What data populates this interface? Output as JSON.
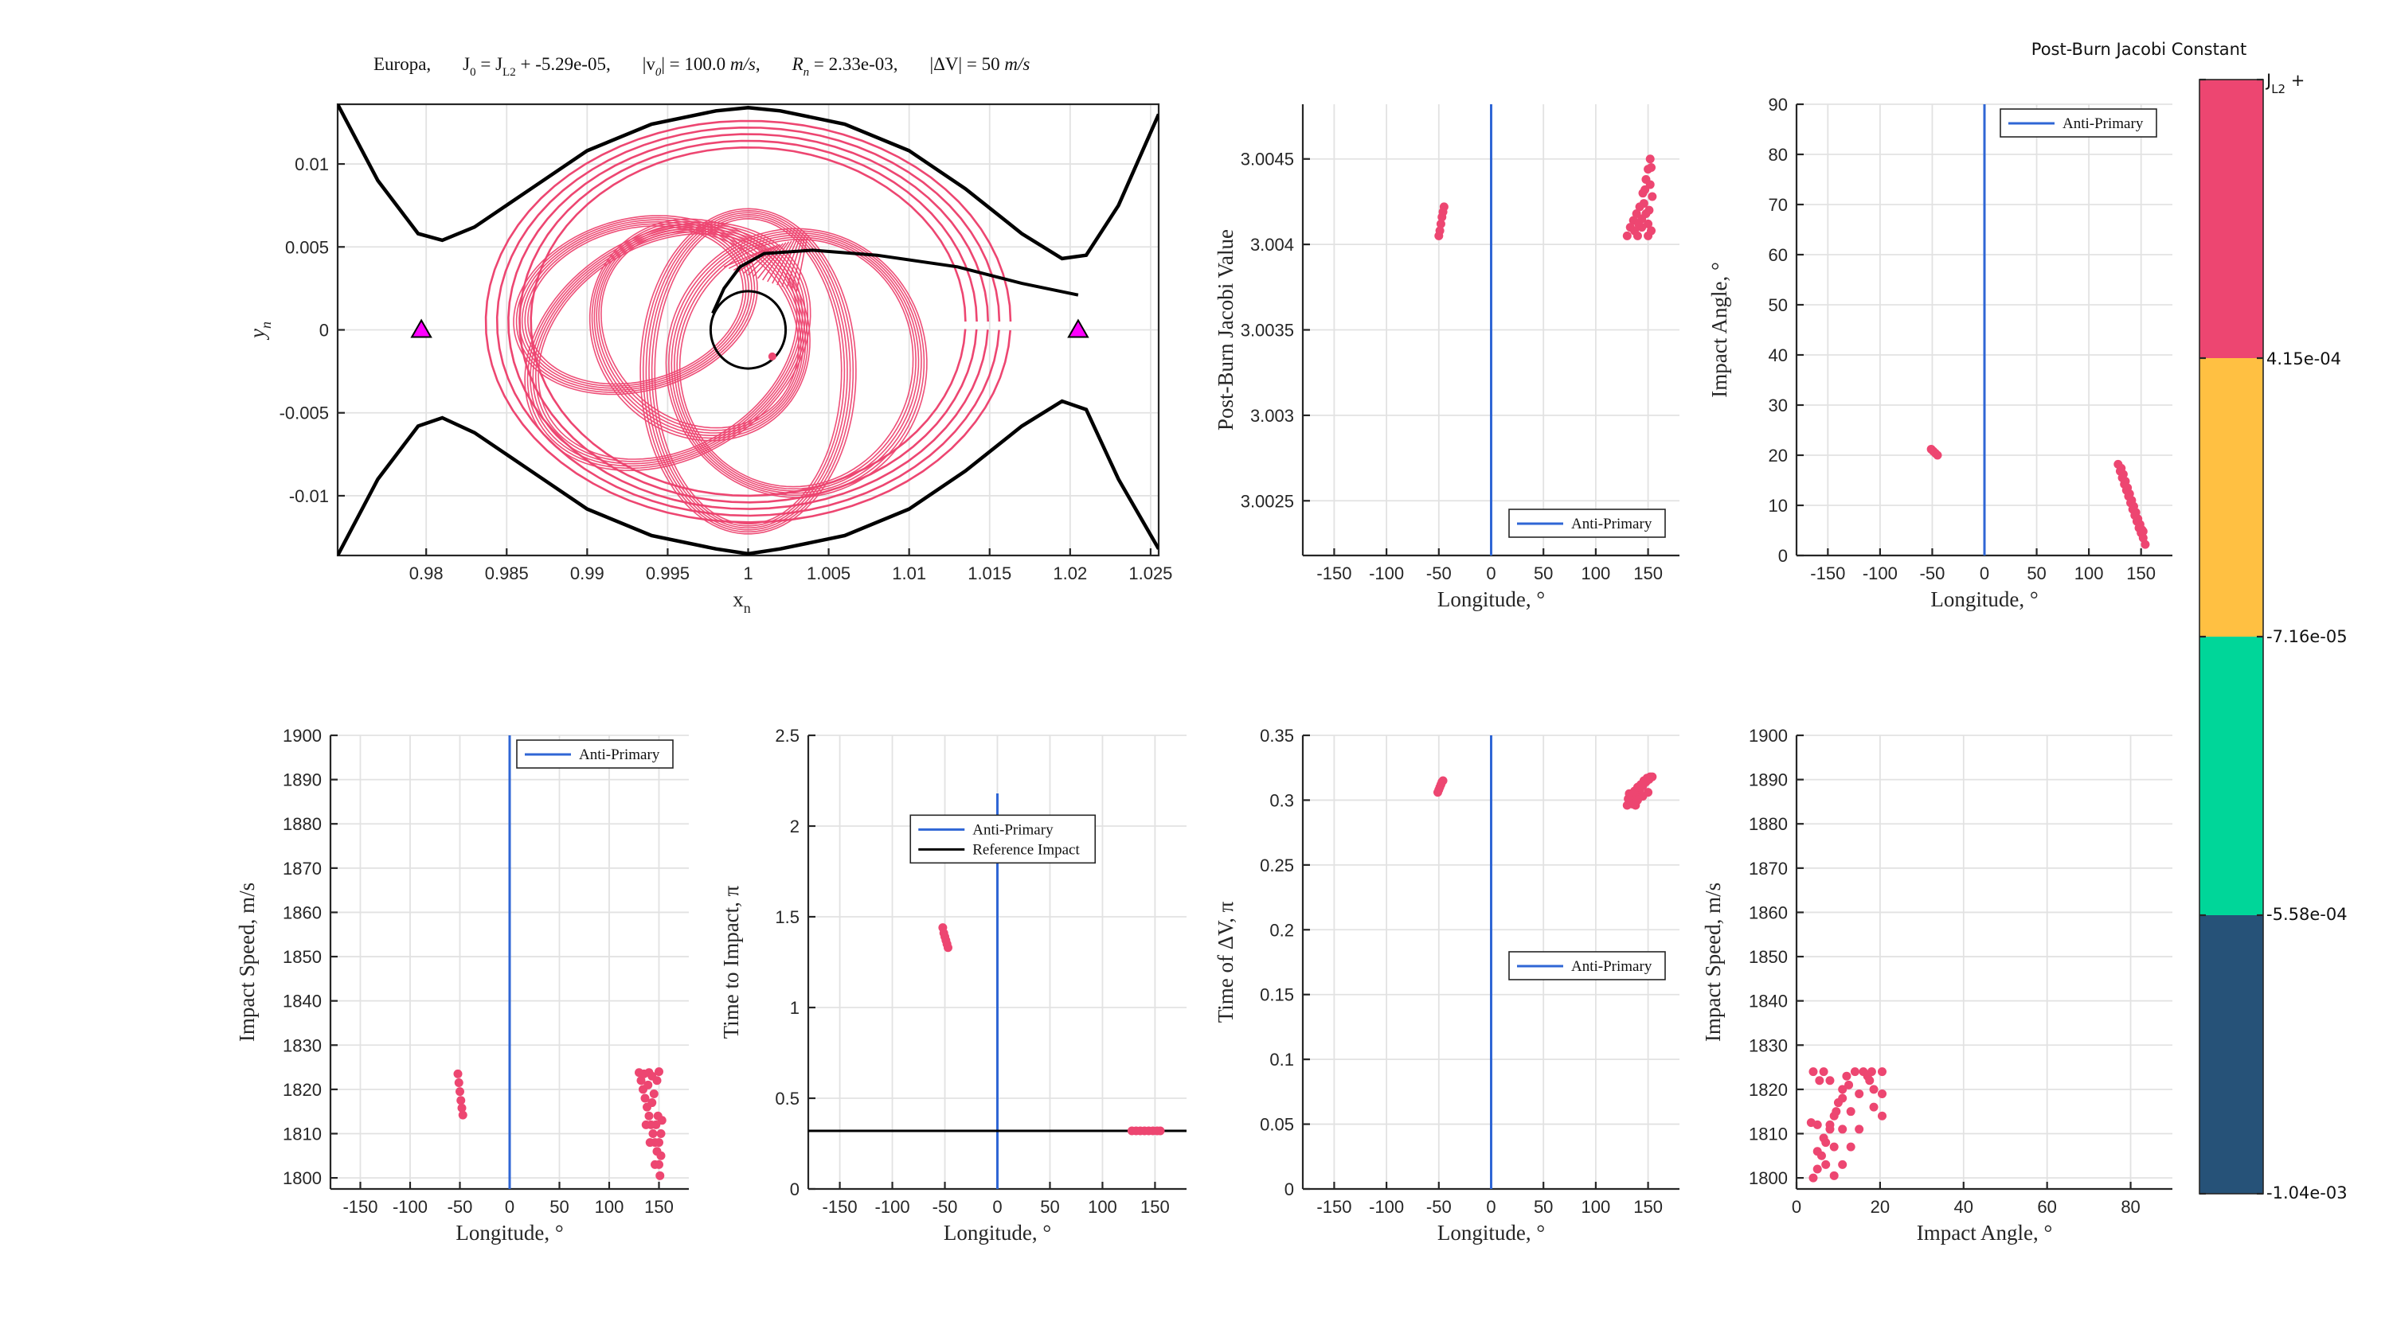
{
  "colors": {
    "pink": "#ED4671",
    "blue": "#2F66D5",
    "black": "#000000",
    "magenta": "#FF00FF",
    "cb": [
      "#265278",
      "#00D699",
      "#FFC042",
      "#ED4671"
    ]
  },
  "colorbar": {
    "title": "Post-Burn Jacobi Constant",
    "top_label": "J",
    "top_label_sub": "L2",
    "top_label_suffix": " +",
    "tick_labels": [
      "4.15e-04",
      "-7.16e-05",
      "-5.58e-04",
      "-1.04e-03"
    ]
  },
  "chart_data": [
    {
      "id": "orbit",
      "type": "line",
      "title": "Europa,     J0 = JL2 + -5.29e-05,     |v0| = 100.0 m/s,     Rn = 2.33e-03,     |ΔV| = 50 m/s",
      "title_parts": [
        "Europa,",
        "J",
        "0",
        " = J",
        "L2",
        " + -5.29e-05,",
        "|v",
        "0",
        "| = 100.0 ",
        "m/s",
        ",",
        "R",
        "n",
        " = 2.33e-03,",
        "|ΔV| = 50 ",
        "m/s"
      ],
      "xlabel": "x",
      "xlabel_sub": "n",
      "ylabel": "y",
      "ylabel_sub": "n",
      "xlim": [
        0.9745,
        1.0255
      ],
      "ylim": [
        -0.0136,
        0.0136
      ],
      "xticks": [
        0.98,
        0.985,
        0.99,
        0.995,
        1,
        1.005,
        1.01,
        1.015,
        1.02,
        1.025
      ],
      "xtick_labels": [
        "0.98",
        "0.985",
        "0.99",
        "0.995",
        "1",
        "1.005",
        "1.01",
        "1.015",
        "1.02",
        "1.025"
      ],
      "yticks": [
        -0.01,
        -0.005,
        0,
        0.005,
        0.01
      ],
      "ytick_labels": [
        "-0.01",
        "-0.005",
        "0",
        "0.005",
        "0.01"
      ],
      "lagrange_points": [
        [
          0.9797,
          0
        ],
        [
          1.0205,
          0
        ]
      ],
      "moon_radius": 0.00233,
      "zvc_upper": [
        [
          0.9745,
          0.0136
        ],
        [
          0.977,
          0.009
        ],
        [
          0.9795,
          0.0058
        ],
        [
          0.981,
          0.0054
        ],
        [
          0.983,
          0.0062
        ],
        [
          0.9865,
          0.0085
        ],
        [
          0.99,
          0.0108
        ],
        [
          0.994,
          0.0124
        ],
        [
          0.998,
          0.0132
        ],
        [
          1.0,
          0.0134
        ],
        [
          1.002,
          0.0132
        ],
        [
          1.006,
          0.0124
        ],
        [
          1.01,
          0.0108
        ],
        [
          1.0135,
          0.0085
        ],
        [
          1.017,
          0.0058
        ],
        [
          1.0195,
          0.0043
        ],
        [
          1.021,
          0.0045
        ],
        [
          1.023,
          0.0075
        ],
        [
          1.0255,
          0.013
        ]
      ],
      "zvc_lower": [
        [
          0.9745,
          -0.0136
        ],
        [
          0.977,
          -0.009
        ],
        [
          0.9795,
          -0.0058
        ],
        [
          0.981,
          -0.0053
        ],
        [
          0.983,
          -0.0062
        ],
        [
          0.9865,
          -0.0085
        ],
        [
          0.99,
          -0.0108
        ],
        [
          0.994,
          -0.0124
        ],
        [
          0.998,
          -0.0132
        ],
        [
          1.0,
          -0.0135
        ],
        [
          1.002,
          -0.0132
        ],
        [
          1.006,
          -0.0124
        ],
        [
          1.01,
          -0.0108
        ],
        [
          1.0135,
          -0.0085
        ],
        [
          1.017,
          -0.0058
        ],
        [
          1.0195,
          -0.0043
        ],
        [
          1.021,
          -0.0048
        ],
        [
          1.023,
          -0.009
        ],
        [
          1.0255,
          -0.0132
        ]
      ],
      "reference_traj": [
        [
          0.9978,
          0.001
        ],
        [
          0.9985,
          0.0025
        ],
        [
          0.9995,
          0.0038
        ],
        [
          1.001,
          0.0046
        ],
        [
          1.004,
          0.0048
        ],
        [
          1.008,
          0.0045
        ],
        [
          1.013,
          0.0038
        ],
        [
          1.017,
          0.0028
        ],
        [
          1.0205,
          0.0021
        ]
      ]
    },
    {
      "id": "jacobi_vs_lon",
      "type": "scatter",
      "xlabel": "Longitude, °",
      "ylabel": "Post-Burn Jacobi Value",
      "xlim": [
        -180,
        180
      ],
      "ylim": [
        3.00218,
        3.00482
      ],
      "xticks": [
        -150,
        -100,
        -50,
        0,
        50,
        100,
        150
      ],
      "xtick_labels": [
        "-150",
        "-100",
        "-50",
        "0",
        "50",
        "100",
        "150"
      ],
      "yticks": [
        3.0025,
        3.003,
        3.0035,
        3.004,
        3.0045
      ],
      "ytick_labels": [
        "3.0025",
        "3.003",
        "3.0035",
        "3.004",
        "3.0045"
      ],
      "vline": 0,
      "legend": [
        "Anti-Primary"
      ],
      "legend_loc": "bottom-right",
      "points": [
        [
          -50,
          3.00405
        ],
        [
          -49,
          3.00408
        ],
        [
          -48,
          3.00412
        ],
        [
          -47,
          3.00416
        ],
        [
          -46,
          3.00419
        ],
        [
          -45,
          3.00422
        ],
        [
          130,
          3.00405
        ],
        [
          133,
          3.0041
        ],
        [
          136,
          3.00414
        ],
        [
          139,
          3.00418
        ],
        [
          142,
          3.00422
        ],
        [
          145,
          3.0043
        ],
        [
          148,
          3.00438
        ],
        [
          150,
          3.00444
        ],
        [
          152,
          3.0045
        ],
        [
          153,
          3.00445
        ],
        [
          151,
          3.0042
        ],
        [
          152,
          3.00435
        ],
        [
          150,
          3.00412
        ],
        [
          148,
          3.00418
        ],
        [
          146,
          3.00424
        ],
        [
          144,
          3.00415
        ],
        [
          140,
          3.00405
        ],
        [
          137,
          3.00408
        ],
        [
          150,
          3.00405
        ],
        [
          154,
          3.00428
        ],
        [
          147,
          3.00432
        ],
        [
          144,
          3.0041
        ],
        [
          141,
          3.00412
        ],
        [
          153,
          3.00408
        ]
      ]
    },
    {
      "id": "angle_vs_lon",
      "type": "scatter",
      "xlabel": "Longitude, °",
      "ylabel": "Impact Angle, °",
      "xlim": [
        -180,
        180
      ],
      "ylim": [
        0,
        90
      ],
      "xticks": [
        -150,
        -100,
        -50,
        0,
        50,
        100,
        150
      ],
      "xtick_labels": [
        "-150",
        "-100",
        "-50",
        "0",
        "50",
        "100",
        "150"
      ],
      "yticks": [
        0,
        10,
        20,
        30,
        40,
        50,
        60,
        70,
        80,
        90
      ],
      "ytick_labels": [
        "0",
        "10",
        "20",
        "30",
        "40",
        "50",
        "60",
        "70",
        "80",
        "90"
      ],
      "vline": 0,
      "legend": [
        "Anti-Primary"
      ],
      "legend_loc": "top-right",
      "points": [
        [
          -51,
          21.2
        ],
        [
          -49,
          20.8
        ],
        [
          -47,
          20.4
        ],
        [
          -45,
          20.0
        ],
        [
          128,
          18.2
        ],
        [
          130,
          16.8
        ],
        [
          132,
          15.5
        ],
        [
          134,
          14.2
        ],
        [
          136,
          13.0
        ],
        [
          138,
          11.8
        ],
        [
          140,
          10.5
        ],
        [
          142,
          9.2
        ],
        [
          144,
          8.0
        ],
        [
          146,
          6.8
        ],
        [
          148,
          5.5
        ],
        [
          150,
          4.5
        ],
        [
          152,
          3.5
        ],
        [
          154,
          2.2
        ],
        [
          133,
          16.2
        ],
        [
          137,
          13.5
        ],
        [
          141,
          11.0
        ],
        [
          145,
          8.6
        ],
        [
          149,
          6.2
        ],
        [
          152,
          4.8
        ],
        [
          131,
          17.4
        ],
        [
          135,
          14.8
        ],
        [
          139,
          12.3
        ],
        [
          143,
          9.8
        ],
        [
          147,
          7.3
        ],
        [
          151,
          5.1
        ]
      ]
    },
    {
      "id": "speed_vs_lon",
      "type": "scatter",
      "xlabel": "Longitude, °",
      "ylabel": "Impact Speed, m/s",
      "xlim": [
        -180,
        180
      ],
      "ylim": [
        1797.5,
        1900
      ],
      "xticks": [
        -150,
        -100,
        -50,
        0,
        50,
        100,
        150
      ],
      "xtick_labels": [
        "-150",
        "-100",
        "-50",
        "0",
        "50",
        "100",
        "150"
      ],
      "yticks": [
        1800,
        1810,
        1820,
        1830,
        1840,
        1850,
        1860,
        1870,
        1880,
        1890,
        1900
      ],
      "ytick_labels": [
        "1800",
        "1810",
        "1820",
        "1830",
        "1840",
        "1850",
        "1860",
        "1870",
        "1880",
        "1890",
        "1900"
      ],
      "vline": 0,
      "legend": [
        "Anti-Primary"
      ],
      "legend_loc": "top-right",
      "points": [
        [
          -52,
          1823.5
        ],
        [
          -51,
          1821.5
        ],
        [
          -50,
          1819.5
        ],
        [
          -49,
          1817.5
        ],
        [
          -48,
          1815.8
        ],
        [
          -47,
          1814.2
        ],
        [
          130,
          1823.8
        ],
        [
          132,
          1822
        ],
        [
          134,
          1820
        ],
        [
          136,
          1818
        ],
        [
          138,
          1816
        ],
        [
          140,
          1814
        ],
        [
          142,
          1812
        ],
        [
          144,
          1810
        ],
        [
          146,
          1808
        ],
        [
          148,
          1806
        ],
        [
          150,
          1803
        ],
        [
          151,
          1800.5
        ],
        [
          135,
          1823.5
        ],
        [
          139,
          1821
        ],
        [
          143,
          1817
        ],
        [
          147,
          1812
        ],
        [
          150,
          1808
        ],
        [
          152,
          1805
        ],
        [
          140,
          1823.8
        ],
        [
          145,
          1819
        ],
        [
          149,
          1814
        ],
        [
          152,
          1810
        ],
        [
          153,
          1813
        ],
        [
          150,
          1824
        ],
        [
          148,
          1822
        ],
        [
          143,
          1823
        ],
        [
          137,
          1812
        ],
        [
          141,
          1808
        ],
        [
          146,
          1803
        ]
      ]
    },
    {
      "id": "tti_vs_lon",
      "type": "scatter",
      "xlabel": "Longitude, °",
      "ylabel": "Time to Impact, π",
      "xlim": [
        -180,
        180
      ],
      "ylim": [
        0,
        2.5
      ],
      "xticks": [
        -150,
        -100,
        -50,
        0,
        50,
        100,
        150
      ],
      "xtick_labels": [
        "-150",
        "-100",
        "-50",
        "0",
        "50",
        "100",
        "150"
      ],
      "yticks": [
        0,
        0.5,
        1,
        1.5,
        2,
        2.5
      ],
      "ytick_labels": [
        "0",
        "0.5",
        "1",
        "1.5",
        "2",
        "2.5"
      ],
      "vline": 0,
      "vline_top": 2.18,
      "hline": 0.32,
      "legend": [
        "Anti-Primary",
        "Reference Impact"
      ],
      "legend_loc": "upper-center",
      "points": [
        [
          -52,
          1.44
        ],
        [
          -51,
          1.41
        ],
        [
          -50,
          1.39
        ],
        [
          -49,
          1.37
        ],
        [
          -48,
          1.35
        ],
        [
          -47,
          1.33
        ],
        [
          128,
          0.32
        ],
        [
          132,
          0.32
        ],
        [
          136,
          0.32
        ],
        [
          140,
          0.32
        ],
        [
          144,
          0.32
        ],
        [
          148,
          0.32
        ],
        [
          152,
          0.32
        ],
        [
          155,
          0.32
        ]
      ]
    },
    {
      "id": "tdv_vs_lon",
      "type": "scatter",
      "xlabel": "Longitude, °",
      "ylabel": "Time of ΔV, π",
      "xlim": [
        -180,
        180
      ],
      "ylim": [
        0,
        0.35
      ],
      "xticks": [
        -150,
        -100,
        -50,
        0,
        50,
        100,
        150
      ],
      "xtick_labels": [
        "-150",
        "-100",
        "-50",
        "0",
        "50",
        "100",
        "150"
      ],
      "yticks": [
        0,
        0.05,
        0.1,
        0.15,
        0.2,
        0.25,
        0.3,
        0.35
      ],
      "ytick_labels": [
        "0",
        "0.05",
        "0.1",
        "0.15",
        "0.2",
        "0.25",
        "0.3",
        "0.35"
      ],
      "vline": 0,
      "legend": [
        "Anti-Primary"
      ],
      "legend_loc": "right-middle",
      "points": [
        [
          -51,
          0.306
        ],
        [
          -50,
          0.308
        ],
        [
          -49,
          0.31
        ],
        [
          -48,
          0.312
        ],
        [
          -47,
          0.314
        ],
        [
          -46,
          0.315
        ],
        [
          130,
          0.296
        ],
        [
          133,
          0.299
        ],
        [
          136,
          0.302
        ],
        [
          139,
          0.305
        ],
        [
          142,
          0.308
        ],
        [
          145,
          0.311
        ],
        [
          148,
          0.314
        ],
        [
          151,
          0.316
        ],
        [
          154,
          0.318
        ],
        [
          131,
          0.301
        ],
        [
          134,
          0.304
        ],
        [
          137,
          0.307
        ],
        [
          140,
          0.31
        ],
        [
          143,
          0.312
        ],
        [
          146,
          0.315
        ],
        [
          149,
          0.317
        ],
        [
          152,
          0.318
        ],
        [
          135,
          0.297
        ],
        [
          140,
          0.3
        ],
        [
          145,
          0.303
        ],
        [
          150,
          0.306
        ],
        [
          138,
          0.296
        ],
        [
          132,
          0.305
        ]
      ]
    },
    {
      "id": "speed_vs_angle",
      "type": "scatter",
      "xlabel": "Impact Angle, °",
      "ylabel": "Impact Speed, m/s",
      "xlim": [
        0,
        90
      ],
      "ylim": [
        1797.5,
        1900
      ],
      "xticks": [
        0,
        20,
        40,
        60,
        80
      ],
      "xtick_labels": [
        "0",
        "20",
        "40",
        "60",
        "80"
      ],
      "yticks": [
        1800,
        1810,
        1820,
        1830,
        1840,
        1850,
        1860,
        1870,
        1880,
        1890,
        1900
      ],
      "ytick_labels": [
        "1800",
        "1810",
        "1820",
        "1830",
        "1840",
        "1850",
        "1860",
        "1870",
        "1880",
        "1890",
        "1900"
      ],
      "points": [
        [
          4,
          1800
        ],
        [
          5,
          1802
        ],
        [
          6,
          1805
        ],
        [
          7,
          1808
        ],
        [
          8,
          1811
        ],
        [
          9,
          1814
        ],
        [
          10,
          1817
        ],
        [
          11,
          1820
        ],
        [
          12,
          1823
        ],
        [
          5,
          1806
        ],
        [
          6.5,
          1809
        ],
        [
          8,
          1812
        ],
        [
          9.5,
          1815
        ],
        [
          11,
          1818
        ],
        [
          12.5,
          1821
        ],
        [
          14,
          1824
        ],
        [
          7,
          1803
        ],
        [
          9,
          1807
        ],
        [
          11,
          1811
        ],
        [
          13,
          1815
        ],
        [
          15,
          1819
        ],
        [
          17,
          1823
        ],
        [
          3.5,
          1812.5
        ],
        [
          5,
          1812
        ],
        [
          4,
          1824
        ],
        [
          5.5,
          1822
        ],
        [
          6.5,
          1824
        ],
        [
          8,
          1822
        ],
        [
          16,
          1824
        ],
        [
          17.5,
          1822
        ],
        [
          18,
          1824
        ],
        [
          18.5,
          1820
        ],
        [
          18.5,
          1816
        ],
        [
          20.5,
          1824
        ],
        [
          20.5,
          1819
        ],
        [
          20.5,
          1814
        ],
        [
          13,
          1807
        ],
        [
          15,
          1811
        ],
        [
          11,
          1803
        ],
        [
          9,
          1800.5
        ]
      ]
    }
  ]
}
